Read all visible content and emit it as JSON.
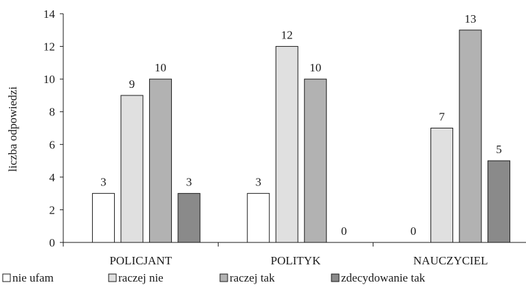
{
  "chart_data": {
    "type": "bar",
    "categories": [
      "POLICJANT",
      "POLITYK",
      "NAUCZYCIEL"
    ],
    "series": [
      {
        "name": "nie ufam",
        "values": [
          3,
          3,
          0
        ],
        "color": "#ffffff"
      },
      {
        "name": "raczej nie",
        "values": [
          9,
          12,
          7
        ],
        "color": "#e0e0e0"
      },
      {
        "name": "raczej tak",
        "values": [
          10,
          10,
          13
        ],
        "color": "#b2b2b2"
      },
      {
        "name": "zdecydowanie tak",
        "values": [
          3,
          0,
          5
        ],
        "color": "#8a8a8a"
      }
    ],
    "xlabel": "",
    "ylabel": "liczba odpowiedzi",
    "ylim": [
      0,
      14
    ],
    "yticks": [
      0,
      2,
      4,
      6,
      8,
      10,
      12,
      14
    ],
    "grid": false,
    "legend_position": "bottom"
  }
}
